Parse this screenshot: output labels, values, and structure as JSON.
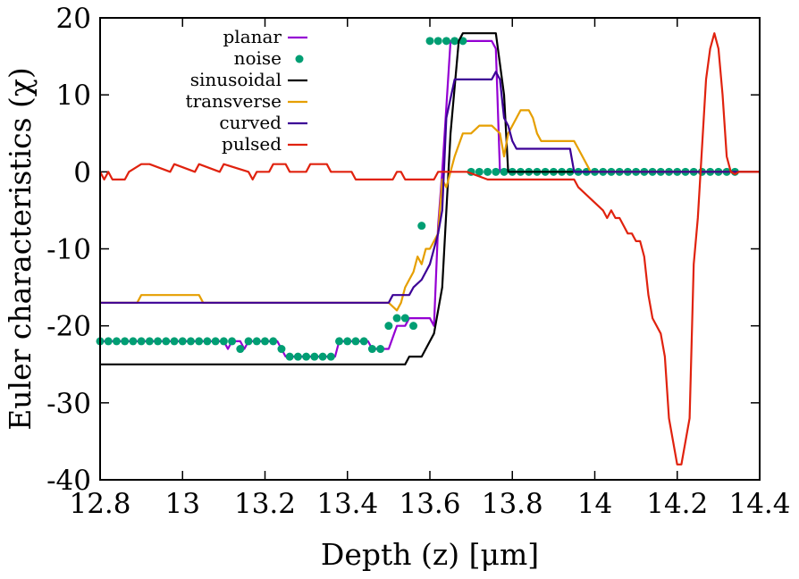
{
  "chart_data": {
    "type": "line",
    "title": "",
    "xlabel": "Depth (z) [μm]",
    "ylabel": "Euler characteristics (χ)",
    "xlim": [
      12.8,
      14.4
    ],
    "ylim": [
      -40,
      20
    ],
    "xticks": [
      12.8,
      13.0,
      13.2,
      13.4,
      13.6,
      13.8,
      14.0,
      14.2,
      14.4
    ],
    "xtick_labels": [
      "12.8",
      "13",
      "13.2",
      "13.4",
      "13.6",
      "13.8",
      "14",
      "14.2",
      "14.4"
    ],
    "yticks": [
      -40,
      -30,
      -20,
      -10,
      0,
      10,
      20
    ],
    "ytick_labels": [
      "-40",
      "-30",
      "-20",
      "-10",
      "0",
      "10",
      "20"
    ],
    "grid": false,
    "legend_position": "top-left",
    "series": [
      {
        "name": "planar",
        "color": "#9400d3",
        "style": "line",
        "x": [
          12.8,
          13.1,
          13.11,
          13.12,
          13.14,
          13.15,
          13.16,
          13.19,
          13.2,
          13.23,
          13.24,
          13.25,
          13.26,
          13.37,
          13.38,
          13.4,
          13.45,
          13.46,
          13.5,
          13.52,
          13.54,
          13.55,
          13.56,
          13.58,
          13.6,
          13.61,
          13.62,
          13.63,
          13.65,
          13.75,
          13.76,
          13.77,
          14.4
        ],
        "y": [
          -22,
          -22,
          -23,
          -22,
          -22,
          -23,
          -22,
          -22,
          -22,
          -22,
          -23,
          -24,
          -24,
          -24,
          -22,
          -22,
          -22,
          -23,
          -23,
          -20,
          -20,
          -19,
          -19,
          -19,
          -19,
          -20,
          -7,
          0,
          17,
          17,
          16,
          0,
          0
        ]
      },
      {
        "name": "noise",
        "color": "#009e73",
        "style": "dots",
        "x": [
          12.8,
          12.82,
          12.84,
          12.86,
          12.88,
          12.9,
          12.92,
          12.94,
          12.96,
          12.98,
          13.0,
          13.02,
          13.04,
          13.06,
          13.08,
          13.1,
          13.12,
          13.14,
          13.16,
          13.18,
          13.2,
          13.22,
          13.24,
          13.26,
          13.28,
          13.3,
          13.32,
          13.34,
          13.36,
          13.38,
          13.4,
          13.42,
          13.44,
          13.46,
          13.48,
          13.5,
          13.52,
          13.54,
          13.56,
          13.58,
          13.6,
          13.62,
          13.64,
          13.66,
          13.68,
          13.7,
          13.72,
          13.74,
          13.76,
          13.78,
          13.8,
          13.82,
          13.84,
          13.86,
          13.88,
          13.9,
          13.92,
          13.94,
          13.96,
          13.98,
          14.0,
          14.02,
          14.04,
          14.06,
          14.08,
          14.1,
          14.12,
          14.14,
          14.16,
          14.18,
          14.2,
          14.22,
          14.24,
          14.26,
          14.28,
          14.3,
          14.32,
          14.34
        ],
        "y": [
          -22,
          -22,
          -22,
          -22,
          -22,
          -22,
          -22,
          -22,
          -22,
          -22,
          -22,
          -22,
          -22,
          -22,
          -22,
          -22,
          -22,
          -23,
          -22,
          -22,
          -22,
          -22,
          -23,
          -24,
          -24,
          -24,
          -24,
          -24,
          -24,
          -22,
          -22,
          -22,
          -22,
          -23,
          -23,
          -20,
          -19,
          -19,
          -20,
          -7,
          17,
          17,
          17,
          17,
          17,
          0,
          0,
          0,
          0,
          0,
          0,
          0,
          0,
          0,
          0,
          0,
          0,
          0,
          0,
          0,
          0,
          0,
          0,
          0,
          0,
          0,
          0,
          0,
          0,
          0,
          0,
          0,
          0,
          0,
          0,
          0,
          0,
          0
        ]
      },
      {
        "name": "sinusoidal",
        "color": "#000000",
        "style": "line",
        "x": [
          12.8,
          13.54,
          13.55,
          13.58,
          13.59,
          13.61,
          13.63,
          13.65,
          13.67,
          13.68,
          13.76,
          13.78,
          13.79,
          14.4
        ],
        "y": [
          -25,
          -25,
          -24,
          -24,
          -23,
          -21,
          -15,
          5,
          17,
          18,
          18,
          10,
          0,
          0
        ]
      },
      {
        "name": "transverse",
        "color": "#e69f00",
        "style": "line",
        "x": [
          12.8,
          12.87,
          12.89,
          12.9,
          13.04,
          13.05,
          13.5,
          13.52,
          13.53,
          13.54,
          13.55,
          13.56,
          13.57,
          13.58,
          13.59,
          13.6,
          13.62,
          13.63,
          13.64,
          13.66,
          13.68,
          13.7,
          13.72,
          13.73,
          13.75,
          13.77,
          13.78,
          13.79,
          13.8,
          13.81,
          13.82,
          13.83,
          13.84,
          13.85,
          13.86,
          13.87,
          13.95,
          13.96,
          13.98,
          13.99,
          14.0,
          14.4
        ],
        "y": [
          -17,
          -17,
          -17,
          -16,
          -16,
          -17,
          -17,
          -18,
          -17,
          -15,
          -14,
          -13,
          -11,
          -12,
          -10,
          -10,
          -8,
          -1,
          -2,
          2,
          5,
          5,
          6,
          6,
          6,
          5,
          2,
          5,
          6,
          7,
          8,
          8,
          8,
          7,
          5,
          4,
          4,
          3,
          1,
          0,
          0,
          0
        ]
      },
      {
        "name": "curved",
        "color": "#3c0096",
        "style": "line",
        "x": [
          12.8,
          13.5,
          13.51,
          13.55,
          13.56,
          13.58,
          13.59,
          13.6,
          13.61,
          13.62,
          13.63,
          13.64,
          13.66,
          13.75,
          13.76,
          13.77,
          13.78,
          13.79,
          13.8,
          13.81,
          13.94,
          13.95,
          14.4
        ],
        "y": [
          -17,
          -17,
          -16,
          -16,
          -15,
          -14,
          -13,
          -12,
          -10,
          -8,
          -5,
          7,
          12,
          12,
          13,
          12,
          7,
          6,
          4,
          3,
          3,
          0,
          0
        ]
      },
      {
        "name": "pulsed",
        "color": "#e0220e",
        "style": "line",
        "x": [
          12.8,
          12.81,
          12.82,
          12.83,
          12.86,
          12.87,
          12.9,
          12.92,
          12.97,
          12.98,
          13.03,
          13.04,
          13.09,
          13.1,
          13.16,
          13.17,
          13.18,
          13.21,
          13.22,
          13.25,
          13.26,
          13.3,
          13.31,
          13.35,
          13.36,
          13.41,
          13.42,
          13.51,
          13.52,
          13.53,
          13.54,
          13.61,
          13.62,
          13.69,
          13.74,
          13.95,
          13.96,
          14.02,
          14.03,
          14.04,
          14.05,
          14.06,
          14.07,
          14.08,
          14.09,
          14.1,
          14.11,
          14.12,
          14.13,
          14.14,
          14.16,
          14.17,
          14.18,
          14.19,
          14.2,
          14.21,
          14.23,
          14.24,
          14.25,
          14.27,
          14.28,
          14.29,
          14.3,
          14.31,
          14.32,
          14.33,
          14.34,
          14.35,
          14.4
        ],
        "y": [
          0,
          -1,
          0,
          -1,
          -1,
          0,
          1,
          1,
          0,
          1,
          0,
          1,
          0,
          1,
          0,
          -1,
          0,
          0,
          1,
          1,
          0,
          0,
          1,
          1,
          0,
          0,
          -1,
          -1,
          0,
          0,
          -1,
          -1,
          0,
          0,
          -1,
          -1,
          -2,
          -5,
          -6,
          -5,
          -6,
          -6,
          -7,
          -8,
          -8,
          -9,
          -9,
          -11,
          -16,
          -19,
          -21,
          -24,
          -32,
          -35,
          -38,
          -38,
          -32,
          -12,
          -6,
          12,
          16,
          18,
          16,
          10,
          2,
          0,
          -0.3,
          0,
          0
        ]
      }
    ]
  }
}
